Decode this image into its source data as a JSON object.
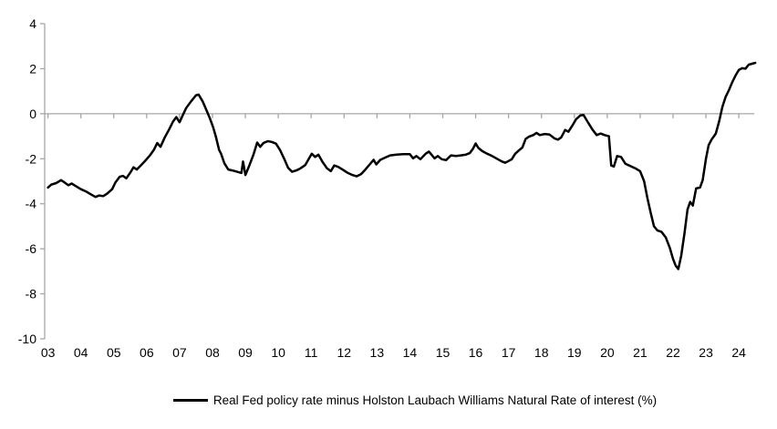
{
  "legend": {
    "label": "Real Fed policy rate minus Holston Laubach Williams Natural Rate of interest (%)"
  },
  "chart_data": {
    "type": "line",
    "title": "",
    "xlabel": "",
    "ylabel": "",
    "legend_position": "bottom",
    "grid": {
      "zero_line": true,
      "other_gridlines": false
    },
    "colors": {
      "axis": "#a6a6a6",
      "line": "#000000",
      "text": "#000000",
      "background": "#ffffff"
    },
    "x_axis": {
      "range": [
        2002.9,
        2024.55
      ],
      "tick_values": [
        2003,
        2004,
        2005,
        2006,
        2007,
        2008,
        2009,
        2010,
        2011,
        2012,
        2013,
        2014,
        2015,
        2016,
        2017,
        2018,
        2019,
        2020,
        2021,
        2022,
        2023,
        2024
      ],
      "tick_labels": [
        "03",
        "04",
        "05",
        "06",
        "07",
        "08",
        "09",
        "10",
        "11",
        "12",
        "13",
        "14",
        "15",
        "16",
        "17",
        "18",
        "19",
        "20",
        "21",
        "22",
        "23",
        "24"
      ]
    },
    "y_axis": {
      "range": [
        -10,
        4
      ],
      "tick_values": [
        4,
        2,
        0,
        -2,
        -4,
        -6,
        -8,
        -10
      ],
      "tick_labels": [
        "4",
        "2",
        "0",
        "-2",
        "-4",
        "-6",
        "-8",
        "-10"
      ]
    },
    "series": [
      {
        "name": "Real Fed policy rate minus Holston Laubach Williams Natural Rate of interest (%)",
        "color": "#000000",
        "points": [
          [
            2003.0,
            -3.28
          ],
          [
            2003.1,
            -3.15
          ],
          [
            2003.25,
            -3.08
          ],
          [
            2003.4,
            -2.95
          ],
          [
            2003.5,
            -3.05
          ],
          [
            2003.62,
            -3.18
          ],
          [
            2003.72,
            -3.1
          ],
          [
            2003.85,
            -3.22
          ],
          [
            2004.0,
            -3.35
          ],
          [
            2004.15,
            -3.45
          ],
          [
            2004.3,
            -3.58
          ],
          [
            2004.45,
            -3.7
          ],
          [
            2004.55,
            -3.63
          ],
          [
            2004.68,
            -3.66
          ],
          [
            2004.8,
            -3.55
          ],
          [
            2004.95,
            -3.35
          ],
          [
            2005.05,
            -3.05
          ],
          [
            2005.18,
            -2.8
          ],
          [
            2005.28,
            -2.76
          ],
          [
            2005.38,
            -2.87
          ],
          [
            2005.5,
            -2.62
          ],
          [
            2005.6,
            -2.38
          ],
          [
            2005.7,
            -2.48
          ],
          [
            2005.82,
            -2.3
          ],
          [
            2005.95,
            -2.1
          ],
          [
            2006.1,
            -1.85
          ],
          [
            2006.22,
            -1.6
          ],
          [
            2006.32,
            -1.3
          ],
          [
            2006.42,
            -1.47
          ],
          [
            2006.55,
            -1.05
          ],
          [
            2006.68,
            -0.7
          ],
          [
            2006.8,
            -0.35
          ],
          [
            2006.9,
            -0.15
          ],
          [
            2007.0,
            -0.38
          ],
          [
            2007.08,
            -0.12
          ],
          [
            2007.2,
            0.25
          ],
          [
            2007.35,
            0.55
          ],
          [
            2007.5,
            0.82
          ],
          [
            2007.58,
            0.85
          ],
          [
            2007.7,
            0.55
          ],
          [
            2007.82,
            0.15
          ],
          [
            2007.92,
            -0.2
          ],
          [
            2008.02,
            -0.6
          ],
          [
            2008.1,
            -1.0
          ],
          [
            2008.2,
            -1.6
          ],
          [
            2008.26,
            -1.78
          ],
          [
            2008.36,
            -2.2
          ],
          [
            2008.48,
            -2.48
          ],
          [
            2008.6,
            -2.52
          ],
          [
            2008.75,
            -2.58
          ],
          [
            2008.88,
            -2.63
          ],
          [
            2008.93,
            -2.12
          ],
          [
            2009.0,
            -2.72
          ],
          [
            2009.12,
            -2.3
          ],
          [
            2009.25,
            -1.8
          ],
          [
            2009.36,
            -1.28
          ],
          [
            2009.45,
            -1.47
          ],
          [
            2009.55,
            -1.3
          ],
          [
            2009.68,
            -1.22
          ],
          [
            2009.8,
            -1.25
          ],
          [
            2009.93,
            -1.33
          ],
          [
            2010.05,
            -1.6
          ],
          [
            2010.18,
            -2.0
          ],
          [
            2010.3,
            -2.4
          ],
          [
            2010.42,
            -2.58
          ],
          [
            2010.55,
            -2.52
          ],
          [
            2010.68,
            -2.42
          ],
          [
            2010.82,
            -2.28
          ],
          [
            2010.95,
            -1.95
          ],
          [
            2011.02,
            -1.78
          ],
          [
            2011.12,
            -1.92
          ],
          [
            2011.22,
            -1.82
          ],
          [
            2011.35,
            -2.15
          ],
          [
            2011.48,
            -2.42
          ],
          [
            2011.6,
            -2.55
          ],
          [
            2011.7,
            -2.3
          ],
          [
            2011.82,
            -2.36
          ],
          [
            2011.95,
            -2.48
          ],
          [
            2012.1,
            -2.62
          ],
          [
            2012.25,
            -2.72
          ],
          [
            2012.38,
            -2.78
          ],
          [
            2012.52,
            -2.68
          ],
          [
            2012.65,
            -2.48
          ],
          [
            2012.78,
            -2.25
          ],
          [
            2012.9,
            -2.05
          ],
          [
            2012.98,
            -2.25
          ],
          [
            2013.1,
            -2.05
          ],
          [
            2013.25,
            -1.95
          ],
          [
            2013.4,
            -1.85
          ],
          [
            2013.6,
            -1.82
          ],
          [
            2013.8,
            -1.8
          ],
          [
            2014.0,
            -1.8
          ],
          [
            2014.1,
            -1.98
          ],
          [
            2014.2,
            -1.88
          ],
          [
            2014.32,
            -2.02
          ],
          [
            2014.48,
            -1.78
          ],
          [
            2014.58,
            -1.68
          ],
          [
            2014.75,
            -1.98
          ],
          [
            2014.85,
            -1.88
          ],
          [
            2014.97,
            -2.02
          ],
          [
            2015.1,
            -2.06
          ],
          [
            2015.25,
            -1.85
          ],
          [
            2015.4,
            -1.88
          ],
          [
            2015.55,
            -1.85
          ],
          [
            2015.7,
            -1.82
          ],
          [
            2015.82,
            -1.75
          ],
          [
            2015.92,
            -1.55
          ],
          [
            2016.0,
            -1.32
          ],
          [
            2016.08,
            -1.52
          ],
          [
            2016.2,
            -1.66
          ],
          [
            2016.35,
            -1.78
          ],
          [
            2016.5,
            -1.88
          ],
          [
            2016.65,
            -2.0
          ],
          [
            2016.8,
            -2.12
          ],
          [
            2016.9,
            -2.18
          ],
          [
            2017.0,
            -2.1
          ],
          [
            2017.1,
            -2.02
          ],
          [
            2017.2,
            -1.78
          ],
          [
            2017.32,
            -1.62
          ],
          [
            2017.42,
            -1.5
          ],
          [
            2017.52,
            -1.12
          ],
          [
            2017.62,
            -1.02
          ],
          [
            2017.75,
            -0.95
          ],
          [
            2017.85,
            -0.85
          ],
          [
            2017.95,
            -0.95
          ],
          [
            2018.1,
            -0.9
          ],
          [
            2018.25,
            -0.93
          ],
          [
            2018.4,
            -1.1
          ],
          [
            2018.5,
            -1.15
          ],
          [
            2018.6,
            -1.05
          ],
          [
            2018.72,
            -0.72
          ],
          [
            2018.82,
            -0.8
          ],
          [
            2018.95,
            -0.5
          ],
          [
            2019.05,
            -0.25
          ],
          [
            2019.18,
            -0.08
          ],
          [
            2019.28,
            -0.06
          ],
          [
            2019.4,
            -0.35
          ],
          [
            2019.55,
            -0.7
          ],
          [
            2019.68,
            -0.95
          ],
          [
            2019.8,
            -0.88
          ],
          [
            2019.92,
            -0.95
          ],
          [
            2020.05,
            -1.0
          ],
          [
            2020.12,
            -2.3
          ],
          [
            2020.2,
            -2.35
          ],
          [
            2020.3,
            -1.88
          ],
          [
            2020.42,
            -1.92
          ],
          [
            2020.55,
            -2.22
          ],
          [
            2020.7,
            -2.32
          ],
          [
            2020.85,
            -2.42
          ],
          [
            2021.0,
            -2.55
          ],
          [
            2021.12,
            -3.0
          ],
          [
            2021.22,
            -3.75
          ],
          [
            2021.32,
            -4.4
          ],
          [
            2021.42,
            -5.0
          ],
          [
            2021.52,
            -5.18
          ],
          [
            2021.65,
            -5.25
          ],
          [
            2021.78,
            -5.5
          ],
          [
            2021.9,
            -5.95
          ],
          [
            2022.0,
            -6.45
          ],
          [
            2022.08,
            -6.75
          ],
          [
            2022.16,
            -6.9
          ],
          [
            2022.25,
            -6.3
          ],
          [
            2022.35,
            -5.3
          ],
          [
            2022.44,
            -4.25
          ],
          [
            2022.52,
            -3.92
          ],
          [
            2022.6,
            -4.08
          ],
          [
            2022.7,
            -3.32
          ],
          [
            2022.82,
            -3.28
          ],
          [
            2022.9,
            -2.95
          ],
          [
            2023.0,
            -2.0
          ],
          [
            2023.08,
            -1.4
          ],
          [
            2023.17,
            -1.15
          ],
          [
            2023.3,
            -0.88
          ],
          [
            2023.4,
            -0.35
          ],
          [
            2023.5,
            0.3
          ],
          [
            2023.6,
            0.75
          ],
          [
            2023.7,
            1.05
          ],
          [
            2023.8,
            1.4
          ],
          [
            2023.9,
            1.7
          ],
          [
            2024.0,
            1.95
          ],
          [
            2024.1,
            2.02
          ],
          [
            2024.2,
            2.0
          ],
          [
            2024.3,
            2.18
          ],
          [
            2024.4,
            2.22
          ],
          [
            2024.5,
            2.26
          ]
        ]
      }
    ]
  }
}
